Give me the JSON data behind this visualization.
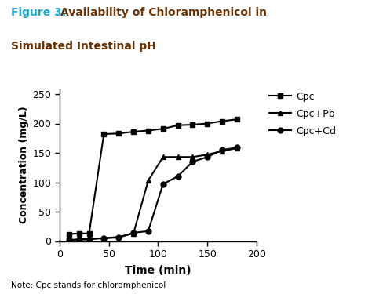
{
  "title_fig_label": "Figure 3: ",
  "title_rest_line1": "Availability of Chloramphenicol in",
  "title_line2": "Simulated Intestinal pH",
  "title_prefix_color": "#1BAAD4",
  "title_main_color": "#6B3000",
  "xlabel": "Time (min)",
  "ylabel": "Concentration ()mg/L",
  "note": "Note: Cpc stands for chloramphenicol",
  "xlim": [
    0,
    200
  ],
  "ylim": [
    0,
    260
  ],
  "xticks": [
    0,
    50,
    100,
    150,
    200
  ],
  "yticks": [
    0,
    50,
    100,
    150,
    200,
    250
  ],
  "Cpc_x": [
    10,
    20,
    30,
    45,
    60,
    75,
    90,
    105,
    120,
    135,
    150,
    165,
    180
  ],
  "Cpc_y": [
    12,
    13,
    13,
    182,
    183,
    186,
    188,
    191,
    197,
    198,
    200,
    204,
    207
  ],
  "CpcPb_x": [
    10,
    20,
    30,
    45,
    60,
    75,
    90,
    105,
    120,
    135,
    150,
    165,
    180
  ],
  "CpcPb_y": [
    1,
    2,
    3,
    5,
    7,
    13,
    103,
    143,
    143,
    143,
    147,
    153,
    158
  ],
  "CpcCd_x": [
    10,
    20,
    30,
    45,
    60,
    75,
    90,
    105,
    120,
    135,
    150,
    165,
    180
  ],
  "CpcCd_y": [
    2,
    3,
    4,
    5,
    6,
    14,
    17,
    97,
    110,
    135,
    143,
    155,
    159
  ],
  "line_color": "#000000",
  "bg_color": "#ffffff",
  "fig_width": 4.74,
  "fig_height": 3.75,
  "dpi": 100
}
